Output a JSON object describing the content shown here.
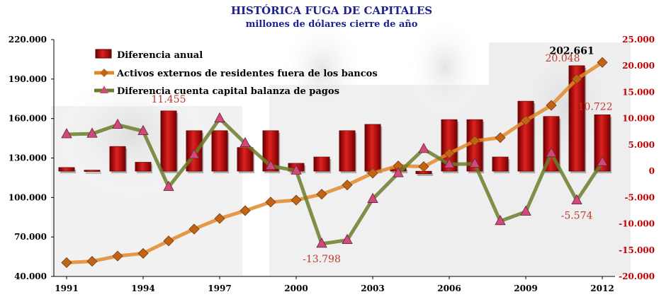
{
  "chart_data": {
    "type": "bar",
    "title": "HISTÓRICA FUGA DE CAPITALES",
    "subtitle": "millones de dólares cierre de año",
    "x": [
      1991,
      1992,
      1993,
      1994,
      1995,
      1996,
      1997,
      1998,
      1999,
      2000,
      2001,
      2002,
      2003,
      2004,
      2005,
      2006,
      2007,
      2008,
      2009,
      2010,
      2011,
      2012
    ],
    "x_tick_labels": [
      "1991",
      "1994",
      "1997",
      "2000",
      "2003",
      "2006",
      "2009",
      "2012"
    ],
    "left_axis": {
      "ylim": [
        40000,
        220000
      ],
      "tick_labels": [
        "40.000",
        "70.000",
        "100.000",
        "130.000",
        "160.000",
        "190.000",
        "220.000"
      ]
    },
    "right_axis": {
      "ylim": [
        -20000,
        25000
      ],
      "tick_labels": [
        "-20.000",
        "-15.000",
        "-10.000",
        "-5.000",
        "0",
        "5.000",
        "10.000",
        "15.000",
        "20.000",
        "25.000"
      ]
    },
    "legend": {
      "placement": "top-left"
    },
    "series": [
      {
        "name": "Diferencia anual",
        "type": "bar",
        "axis": "right",
        "color": "#c00000",
        "values": [
          700,
          200,
          4700,
          1700,
          11455,
          7700,
          7700,
          4500,
          7700,
          1500,
          2700,
          7700,
          8900,
          700,
          -500,
          9800,
          9800,
          2700,
          13300,
          10400,
          20048,
          10722
        ]
      },
      {
        "name": "Activos externos de residentes  fuera de los bancos",
        "type": "line",
        "axis": "left",
        "color": "#e0892a",
        "marker_color": "#c06418",
        "values": [
          50500,
          51500,
          55500,
          57500,
          67000,
          76000,
          84000,
          90000,
          96500,
          98000,
          102500,
          109500,
          118500,
          124000,
          123500,
          133500,
          143000,
          145500,
          158500,
          170000,
          190000,
          202661
        ]
      },
      {
        "name": "Diferencia cuenta capital balanza de pagos",
        "type": "line",
        "axis": "right",
        "color": "#6b7d2a",
        "marker_color": "#d04a7a",
        "values": [
          7000,
          7100,
          8800,
          7600,
          -3000,
          3100,
          10000,
          5300,
          1000,
          100,
          -13798,
          -13100,
          -5300,
          -400,
          4200,
          1300,
          1400,
          -9500,
          -7700,
          3400,
          -5574,
          1700
        ]
      }
    ],
    "annotations": [
      "11.455",
      "-13.798",
      "202.661",
      "20.048",
      "10.722",
      "-5.574"
    ],
    "colors": {
      "title": "#1f1f8f",
      "right_axis_labels": "#c00000",
      "annotation_red": "#c0392b",
      "annotation_dark": "#000000"
    }
  }
}
